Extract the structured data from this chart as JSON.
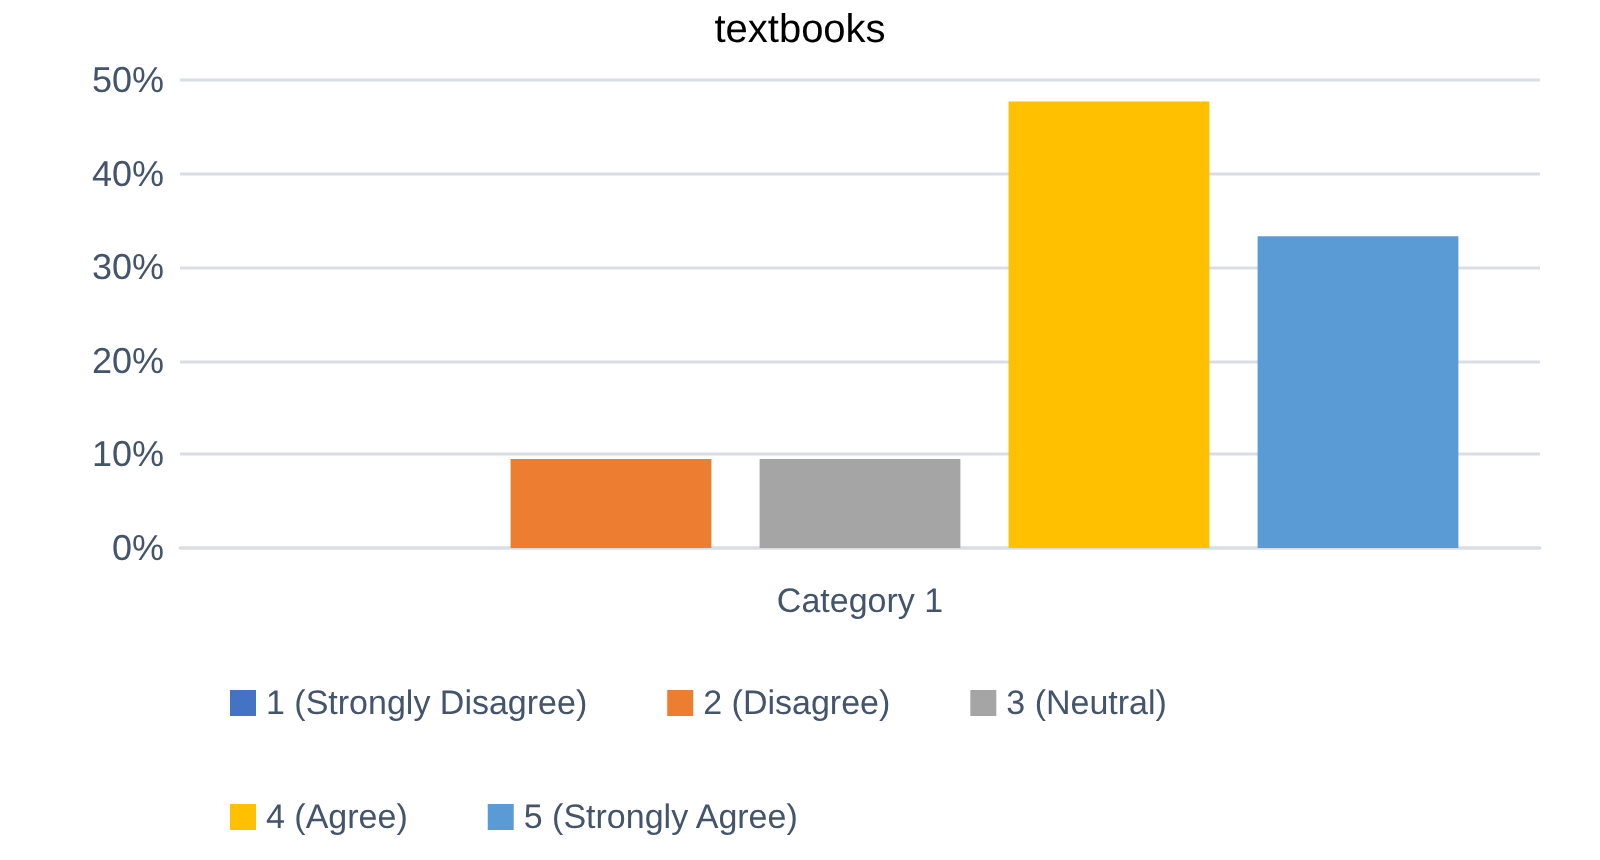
{
  "chart_data": {
    "type": "bar",
    "title": "textbooks",
    "categories": [
      "Category 1"
    ],
    "series": [
      {
        "name": "1 (Strongly Disagree)",
        "color": "#4472c4",
        "values": [
          0
        ]
      },
      {
        "name": "2 (Disagree)",
        "color": "#ed7d31",
        "values": [
          9.5
        ]
      },
      {
        "name": "3 (Neutral)",
        "color": "#a5a5a5",
        "values": [
          9.5
        ]
      },
      {
        "name": "4 (Agree)",
        "color": "#ffc000",
        "values": [
          47.7
        ]
      },
      {
        "name": "5 (Strongly Agree)",
        "color": "#5b9bd5",
        "values": [
          33.3
        ]
      }
    ],
    "ylim": [
      0,
      50
    ],
    "yticks": [
      {
        "value": 0,
        "label": "0%"
      },
      {
        "value": 10,
        "label": "10%"
      },
      {
        "value": 20,
        "label": "20%"
      },
      {
        "value": 30,
        "label": "30%"
      },
      {
        "value": 40,
        "label": "40%"
      },
      {
        "value": 50,
        "label": "50%"
      }
    ],
    "grid": "y",
    "legend": "bottom"
  }
}
